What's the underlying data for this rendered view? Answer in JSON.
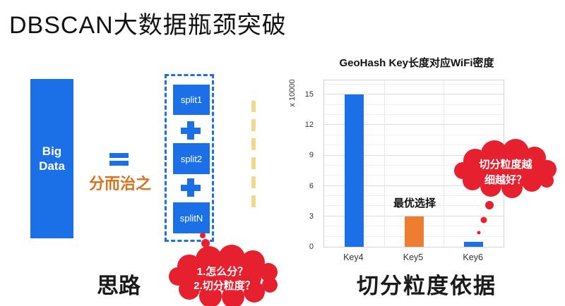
{
  "slide": {
    "title": "DBSCAN大数据瓶颈突破"
  },
  "left_diagram": {
    "big_data_label": "Big Data",
    "divide_label": "分而治之",
    "splits": [
      "split1",
      "split2",
      "splitN"
    ],
    "caption": "思路"
  },
  "question_bubble": {
    "line1": "1.怎么分？",
    "line2": "2.切分粒度？"
  },
  "thought_bubble": {
    "line1": "切分粒度越",
    "line2": "细越好？"
  },
  "chart_section": {
    "caption": "切分粒度依据"
  },
  "chart_data": {
    "type": "bar",
    "title": "GeoHash Key长度对应WiFi密度",
    "ylabel": "x 10000",
    "xlabel": "",
    "categories": [
      "Key4",
      "Key5",
      "Key6"
    ],
    "values": [
      15,
      3,
      0.5
    ],
    "bar_colors": [
      "#1B70E8",
      "#ED7D31",
      "#1B70E8"
    ],
    "yticks": [
      0,
      3,
      6,
      9,
      12,
      15
    ],
    "ylim": [
      0,
      16.4
    ],
    "grid": true,
    "legend": false,
    "annotation": {
      "text": "最优选择",
      "category": "Key5"
    }
  },
  "colors": {
    "blue": "#1B70E8",
    "orange_bar": "#ED7D31",
    "orange_text": "#D8731D",
    "red": "#E6202E",
    "yellow_dash": "#F0D98E"
  }
}
